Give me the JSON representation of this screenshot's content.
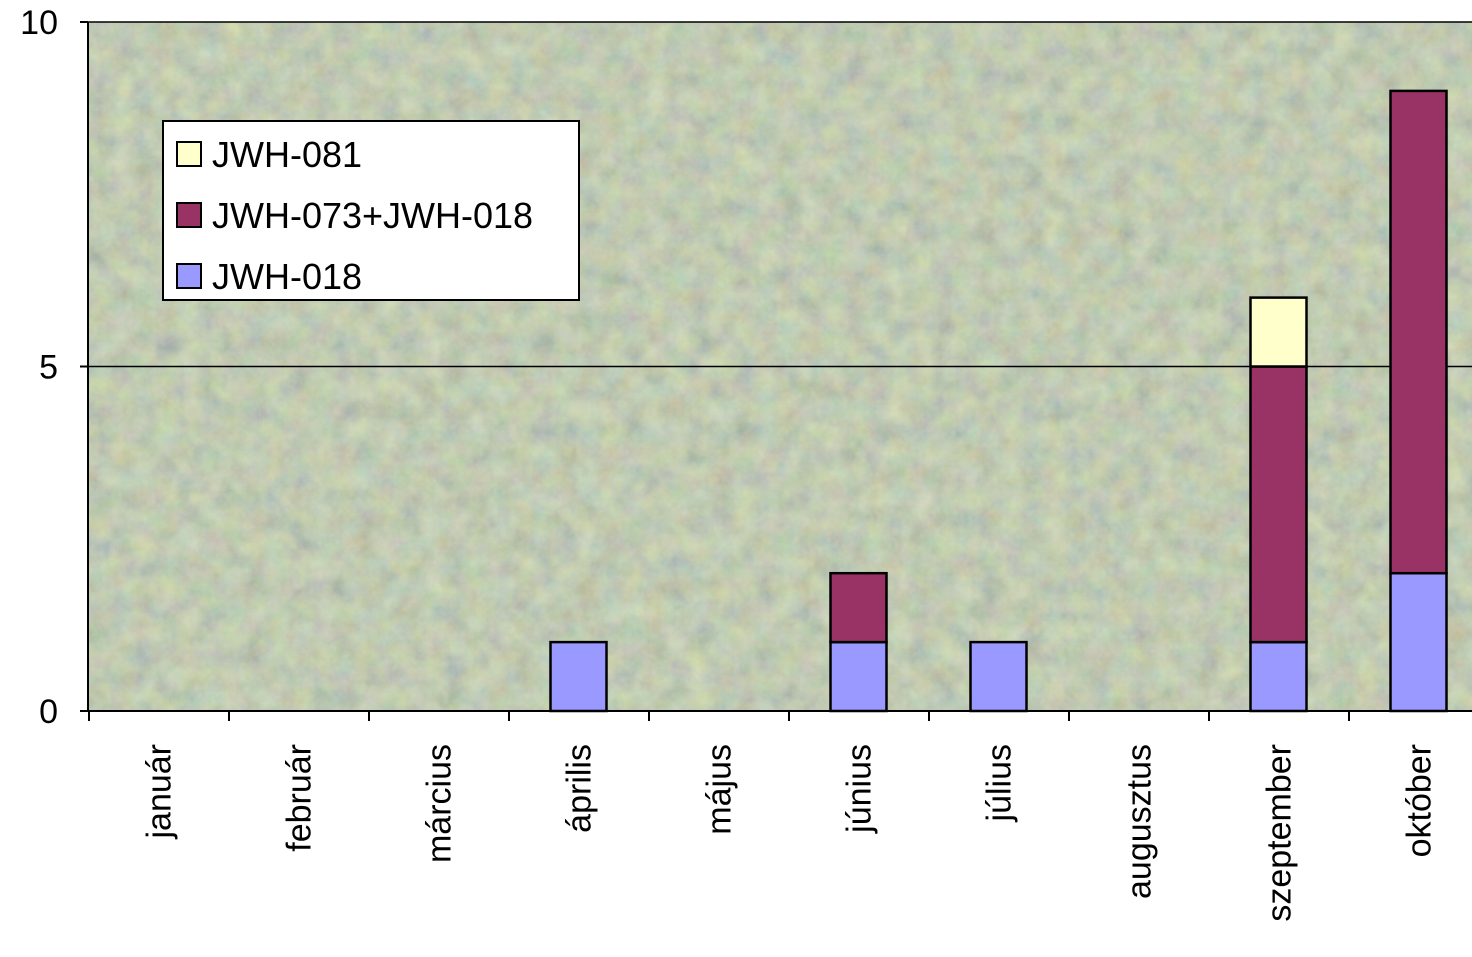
{
  "chart_data": {
    "type": "bar",
    "stacked": true,
    "categories": [
      "január",
      "február",
      "március",
      "április",
      "május",
      "június",
      "július",
      "augusztus",
      "szeptember",
      "október"
    ],
    "series": [
      {
        "name": "JWH-018",
        "color": "#9999ff",
        "values": [
          0,
          0,
          0,
          1,
          0,
          1,
          1,
          0,
          1,
          2
        ]
      },
      {
        "name": "JWH-073+JWH-018",
        "color": "#993366",
        "values": [
          0,
          0,
          0,
          0,
          0,
          1,
          0,
          0,
          4,
          7
        ]
      },
      {
        "name": "JWH-081",
        "color": "#ffffcc",
        "values": [
          0,
          0,
          0,
          0,
          0,
          0,
          0,
          0,
          1,
          0
        ]
      }
    ],
    "ylim": [
      0,
      10
    ],
    "yticks": [
      "0",
      "5",
      "10"
    ],
    "grid": true,
    "legend_position": "top-left",
    "background": "photograph of dried herbal plant material"
  }
}
